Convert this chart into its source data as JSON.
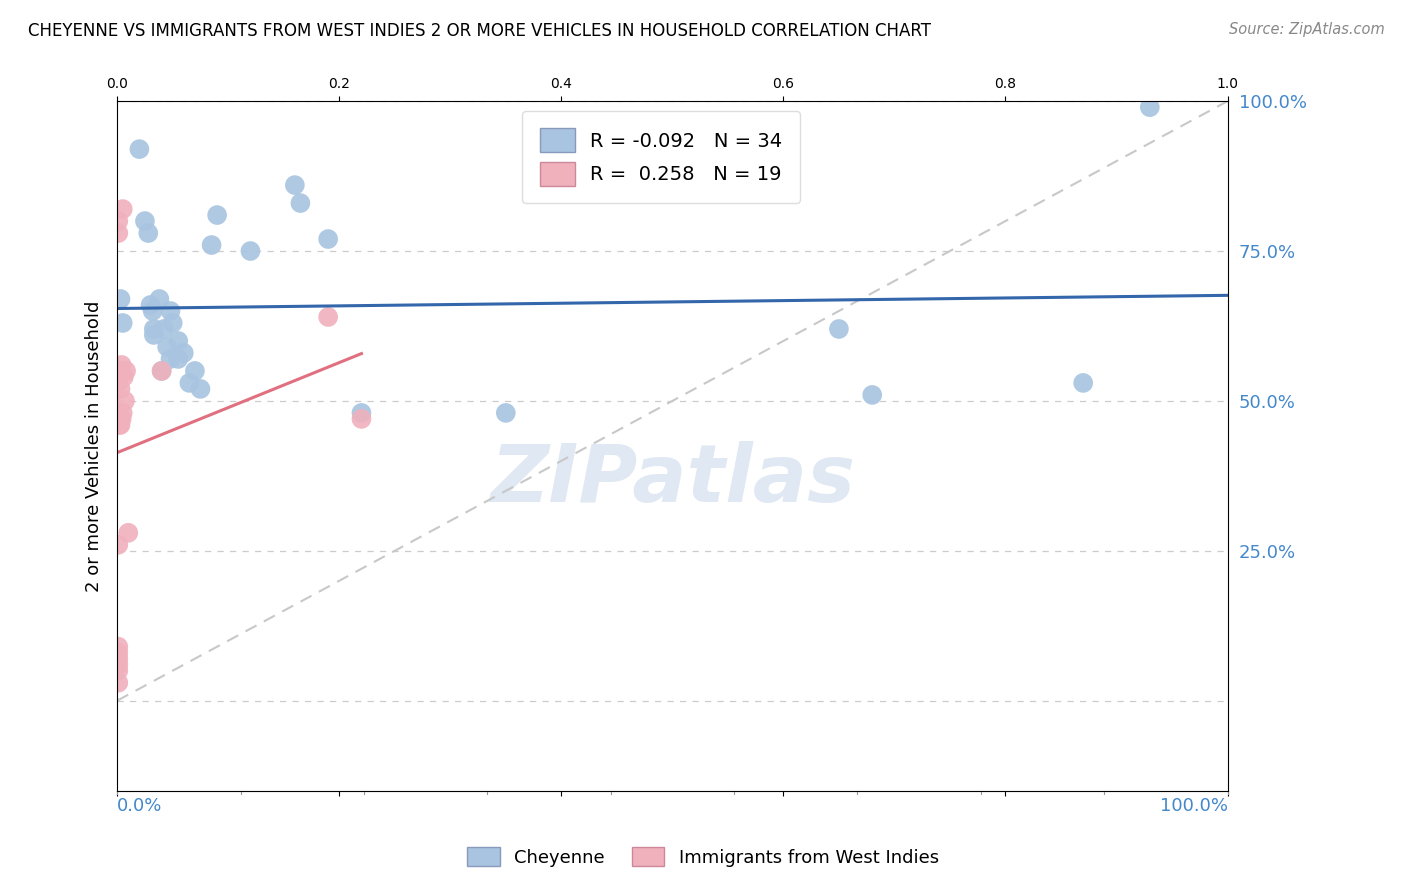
{
  "title": "CHEYENNE VS IMMIGRANTS FROM WEST INDIES 2 OR MORE VEHICLES IN HOUSEHOLD CORRELATION CHART",
  "source": "Source: ZipAtlas.com",
  "ylabel": "2 or more Vehicles in Household",
  "legend_blue_R": "-0.092",
  "legend_blue_N": "34",
  "legend_pink_R": "0.258",
  "legend_pink_N": "19",
  "legend_label_blue": "Cheyenne",
  "legend_label_pink": "Immigrants from West Indies",
  "blue_scatter_color": "#a8c4e0",
  "blue_line_color": "#3366aa",
  "pink_scatter_color": "#f0b0bc",
  "pink_line_color": "#e07080",
  "diag_color": "#c8c8c8",
  "background": "#ffffff",
  "grid_color": "#cccccc",
  "right_axis_color": "#4488cc",
  "bottom_axis_color": "#4488cc",
  "watermark": "ZIPatlas",
  "watermark_color": "#ccdaeb",
  "cheyenne_x": [
    0.003,
    0.005,
    0.02,
    0.025,
    0.028,
    0.03,
    0.032,
    0.033,
    0.033,
    0.038,
    0.04,
    0.042,
    0.045,
    0.048,
    0.048,
    0.05,
    0.055,
    0.055,
    0.06,
    0.065,
    0.07,
    0.075,
    0.085,
    0.09,
    0.12,
    0.16,
    0.165,
    0.19,
    0.22,
    0.35,
    0.65,
    0.68,
    0.87,
    0.93
  ],
  "cheyenne_y": [
    0.67,
    0.63,
    0.92,
    0.8,
    0.78,
    0.66,
    0.65,
    0.62,
    0.61,
    0.67,
    0.55,
    0.62,
    0.59,
    0.57,
    0.65,
    0.63,
    0.6,
    0.57,
    0.58,
    0.53,
    0.55,
    0.52,
    0.76,
    0.81,
    0.75,
    0.86,
    0.83,
    0.77,
    0.48,
    0.48,
    0.62,
    0.51,
    0.53,
    0.99
  ],
  "west_indies_x": [
    0.001,
    0.001,
    0.002,
    0.003,
    0.003,
    0.004,
    0.005,
    0.005,
    0.006,
    0.007,
    0.008,
    0.01,
    0.002,
    0.003,
    0.004,
    0.04,
    0.19,
    0.22,
    0.001
  ],
  "west_indies_y": [
    0.53,
    0.78,
    0.55,
    0.52,
    0.55,
    0.56,
    0.82,
    0.48,
    0.54,
    0.5,
    0.55,
    0.28,
    0.46,
    0.46,
    0.47,
    0.55,
    0.64,
    0.47,
    0.8
  ],
  "west_indies_low_x": [
    0.001,
    0.001,
    0.001,
    0.001,
    0.001,
    0.001,
    0.001
  ],
  "west_indies_low_y": [
    0.26,
    0.05,
    0.06,
    0.07,
    0.08,
    0.09,
    0.03
  ],
  "xlim_min": 0.0,
  "xlim_max": 1.0,
  "ylim_min": -0.15,
  "ylim_max": 1.0
}
